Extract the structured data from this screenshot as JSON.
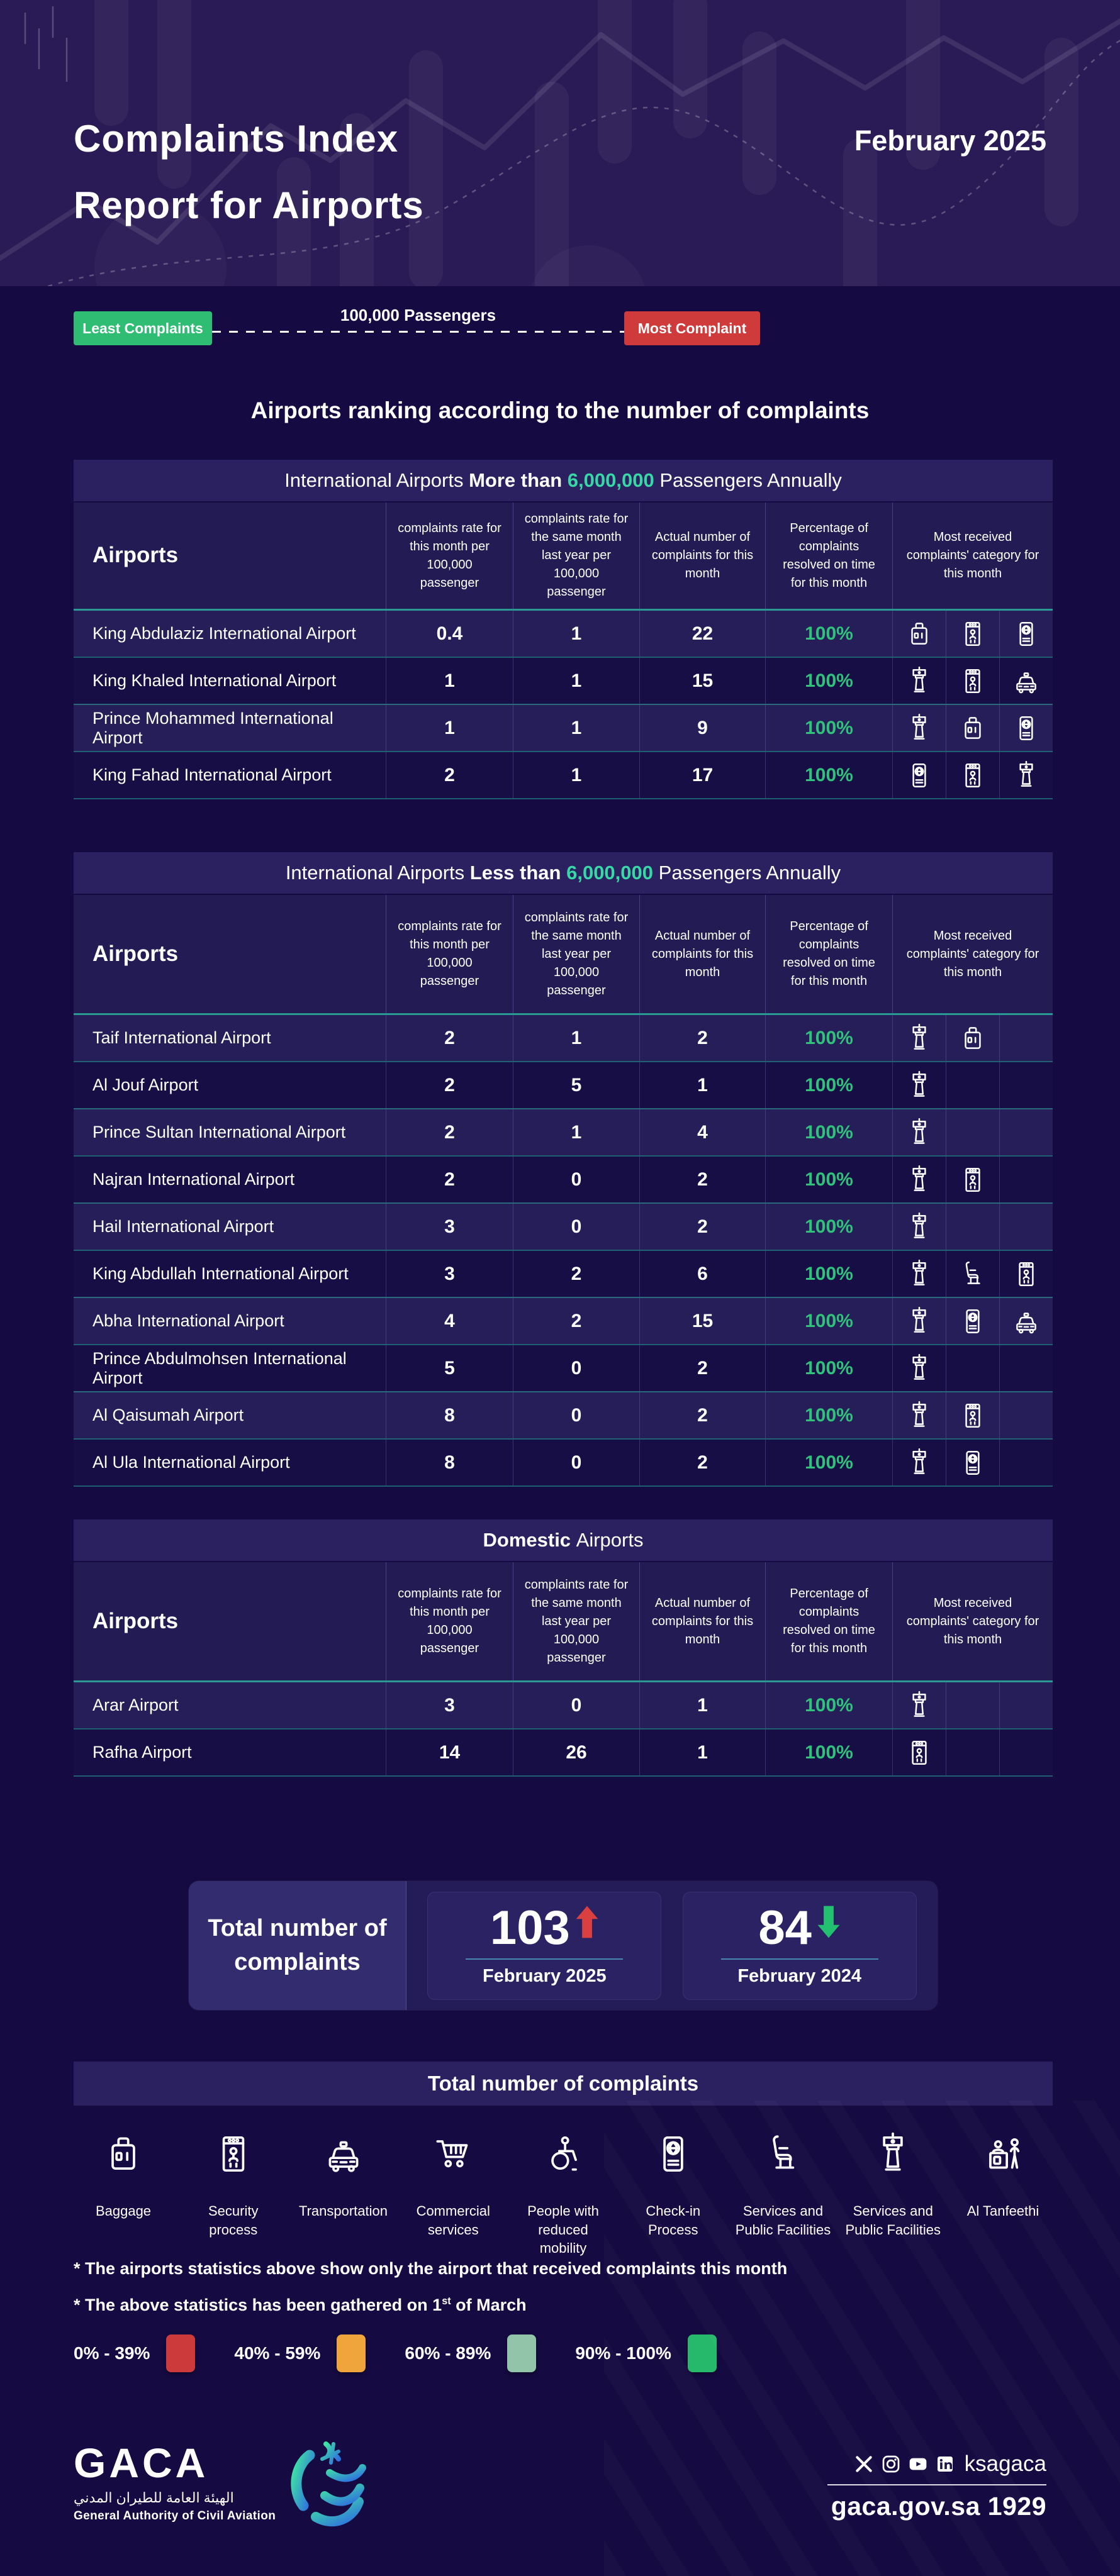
{
  "header": {
    "title_line1": "Complaints Index",
    "title_line2": "Report for Airports",
    "date": "February 2025"
  },
  "scale": {
    "least_label": "Least Complaints",
    "axis_label": "100,000 Passengers",
    "most_label": "Most Complaint",
    "least_color": "#2ebd72",
    "most_color": "#cf3b3b"
  },
  "ranking_heading": "Airports ranking according to the number of complaints",
  "columns": [
    "Airports",
    "complaints rate for this month per 100,000 passenger",
    "complaints rate for the same month last year per 100,000 passenger",
    "Actual number of complaints for this month",
    "Percentage of complaints resolved on time for this month",
    "Most received complaints' category for this month"
  ],
  "tables": [
    {
      "title": {
        "pre": "International Airports ",
        "bold": "More than ",
        "highlight": "6,000,000",
        "post": " Passengers Annually"
      },
      "rows": [
        {
          "name": "King Abdulaziz International Airport",
          "this_month": "0.4",
          "last_year": "1",
          "actual": "22",
          "resolved": "100%",
          "icons": [
            "baggage",
            "security",
            "checkin"
          ]
        },
        {
          "name": "King Khaled International Airport",
          "this_month": "1",
          "last_year": "1",
          "actual": "15",
          "resolved": "100%",
          "icons": [
            "tower",
            "security",
            "transportation"
          ]
        },
        {
          "name": "Prince Mohammed International Airport",
          "this_month": "1",
          "last_year": "1",
          "actual": "9",
          "resolved": "100%",
          "icons": [
            "tower",
            "baggage",
            "checkin"
          ]
        },
        {
          "name": "King Fahad International Airport",
          "this_month": "2",
          "last_year": "1",
          "actual": "17",
          "resolved": "100%",
          "icons": [
            "checkin",
            "security",
            "tower"
          ]
        }
      ]
    },
    {
      "title": {
        "pre": "International Airports ",
        "bold": "Less than ",
        "highlight": "6,000,000",
        "post": " Passengers Annually"
      },
      "rows": [
        {
          "name": "Taif International Airport",
          "this_month": "2",
          "last_year": "1",
          "actual": "2",
          "resolved": "100%",
          "icons": [
            "tower",
            "baggage"
          ]
        },
        {
          "name": "Al Jouf Airport",
          "this_month": "2",
          "last_year": "5",
          "actual": "1",
          "resolved": "100%",
          "icons": [
            "tower"
          ]
        },
        {
          "name": "Prince Sultan International Airport",
          "this_month": "2",
          "last_year": "1",
          "actual": "4",
          "resolved": "100%",
          "icons": [
            "tower"
          ]
        },
        {
          "name": "Najran International Airport",
          "this_month": "2",
          "last_year": "0",
          "actual": "2",
          "resolved": "100%",
          "icons": [
            "tower",
            "security"
          ]
        },
        {
          "name": "Hail International Airport",
          "this_month": "3",
          "last_year": "0",
          "actual": "2",
          "resolved": "100%",
          "icons": [
            "tower"
          ]
        },
        {
          "name": "King Abdullah International Airport",
          "this_month": "3",
          "last_year": "2",
          "actual": "6",
          "resolved": "100%",
          "icons": [
            "tower",
            "seat",
            "security"
          ]
        },
        {
          "name": "Abha International Airport",
          "this_month": "4",
          "last_year": "2",
          "actual": "15",
          "resolved": "100%",
          "icons": [
            "tower",
            "checkin",
            "transportation"
          ]
        },
        {
          "name": "Prince Abdulmohsen International Airport",
          "this_month": "5",
          "last_year": "0",
          "actual": "2",
          "resolved": "100%",
          "icons": [
            "tower"
          ]
        },
        {
          "name": "Al Qaisumah Airport",
          "this_month": "8",
          "last_year": "0",
          "actual": "2",
          "resolved": "100%",
          "icons": [
            "tower",
            "security"
          ]
        },
        {
          "name": "Al Ula International Airport",
          "this_month": "8",
          "last_year": "0",
          "actual": "2",
          "resolved": "100%",
          "icons": [
            "tower",
            "checkin"
          ]
        }
      ]
    },
    {
      "title": {
        "pre": "",
        "bold": "Domestic",
        "highlight": "",
        "post": " Airports"
      },
      "rows": [
        {
          "name": "Arar Airport",
          "this_month": "3",
          "last_year": "0",
          "actual": "1",
          "resolved": "100%",
          "icons": [
            "tower"
          ]
        },
        {
          "name": "Rafha Airport",
          "this_month": "14",
          "last_year": "26",
          "actual": "1",
          "resolved": "100%",
          "icons": [
            "security"
          ]
        }
      ]
    }
  ],
  "totals": {
    "label": "Total number of complaints",
    "current": {
      "value": "103",
      "trend": "up",
      "trend_color": "#d9403f",
      "period": "February 2025"
    },
    "previous": {
      "value": "84",
      "trend": "down",
      "trend_color": "#22c070",
      "period": "February 2024"
    }
  },
  "categories_legend": {
    "title": "Total number of complaints",
    "items": [
      {
        "icon": "baggage",
        "label": "Baggage"
      },
      {
        "icon": "security",
        "label": "Security process"
      },
      {
        "icon": "transportation",
        "label": "Transportation"
      },
      {
        "icon": "commercial",
        "label": "Commercial services"
      },
      {
        "icon": "mobility",
        "label": "People with reduced mobility"
      },
      {
        "icon": "checkin",
        "label": "Check-in Process"
      },
      {
        "icon": "seat",
        "label": "Services and Public Facilities"
      },
      {
        "icon": "tower",
        "label": "Services and Public Facilities"
      },
      {
        "icon": "tanfeethi",
        "label": "Al Tanfeethi"
      }
    ]
  },
  "footnotes": {
    "line1": "* The airports statistics above show only the airport that received complaints this month",
    "line2": {
      "pre": "* The above statistics has been gathered on 1",
      "sup": "st",
      "post": " of March"
    }
  },
  "resolution_legend": [
    {
      "range": "0% - 39%",
      "color": "#cd3a3c"
    },
    {
      "range": "40% - 59%",
      "color": "#f0a43c"
    },
    {
      "range": "60% - 89%",
      "color": "#92c4a9"
    },
    {
      "range": "90% - 100%",
      "color": "#26b96b"
    }
  ],
  "footer": {
    "logo_text": "GACA",
    "logo_sub_ar": "الهيئة العامة للطيران المدني",
    "logo_sub_en": "General Authority of Civil Aviation",
    "social_icons": [
      "x",
      "instagram",
      "youtube",
      "linkedin"
    ],
    "social_handle": "ksagaca",
    "website": "gaca.gov.sa",
    "phone": "1929"
  },
  "accent_colors": {
    "teal_highlight": "#38d7a6",
    "resolved_green": "#30c27b",
    "banner_bg": "#2b2160",
    "page_bg": "#150a41"
  }
}
